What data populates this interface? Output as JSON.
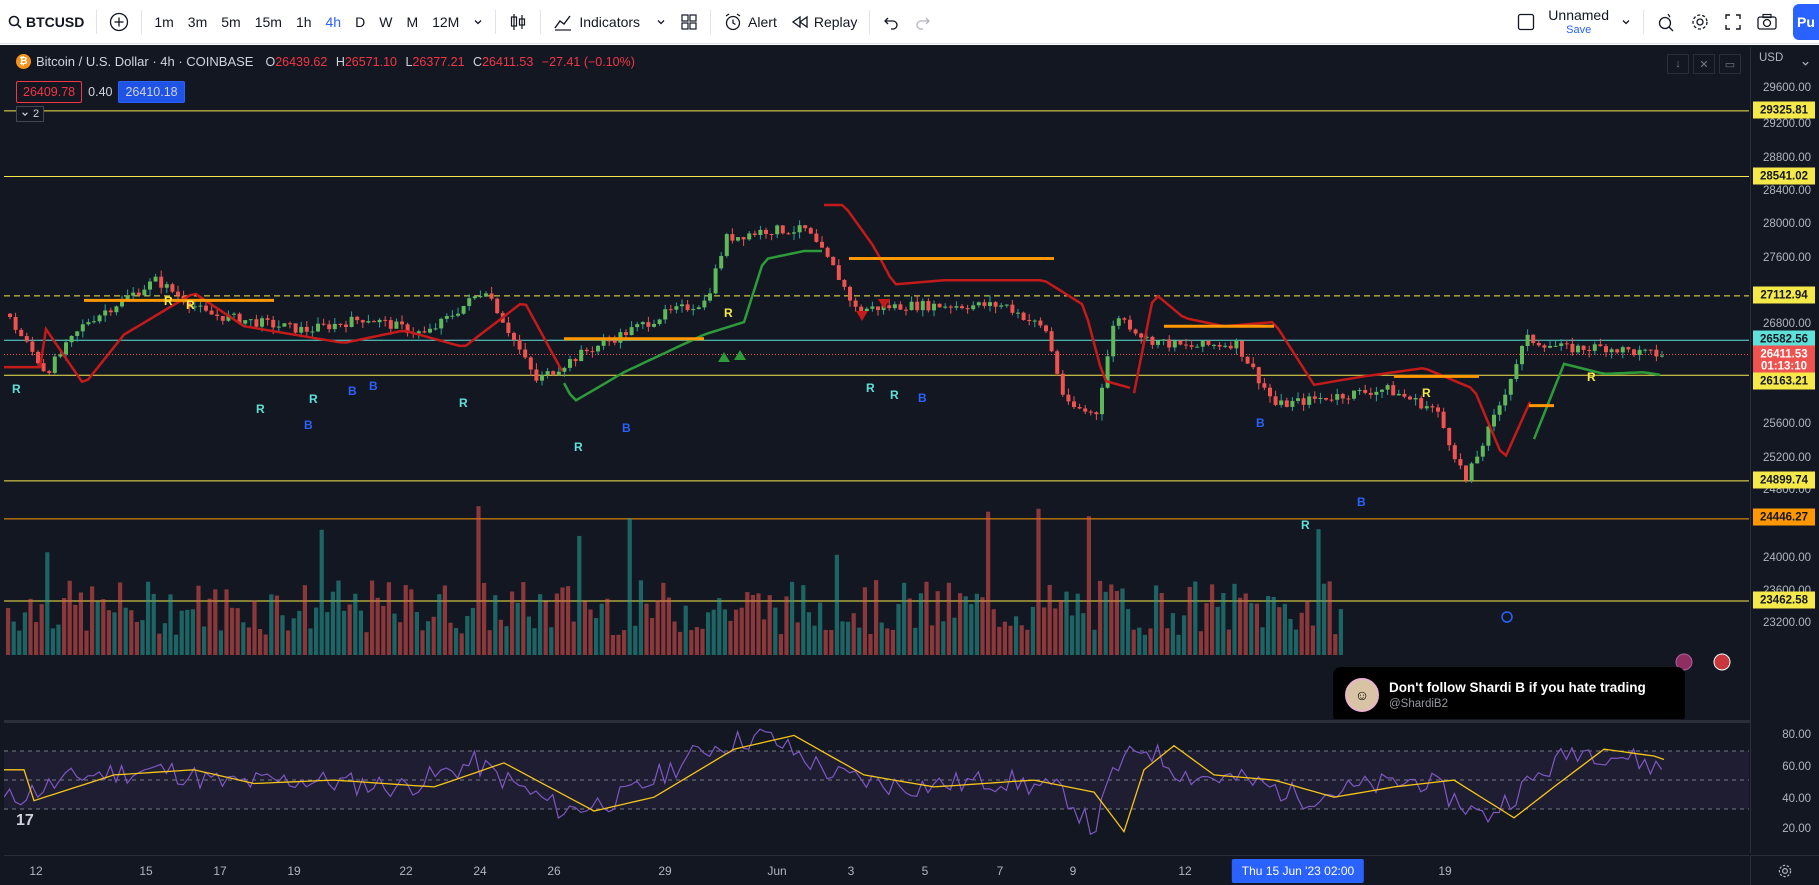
{
  "toolbar": {
    "symbol": "BTCUSD",
    "intervals": [
      "1m",
      "3m",
      "5m",
      "15m",
      "1h",
      "4h",
      "D",
      "W",
      "M",
      "12M"
    ],
    "active_interval": "4h",
    "indicators_label": "Indicators",
    "alert_label": "Alert",
    "replay_label": "Replay",
    "layout_name": "Unnamed",
    "layout_save": "Save",
    "publish_label": "Pu"
  },
  "legend": {
    "title": "Bitcoin / U.S. Dollar · 4h · COINBASE",
    "o_key": "O",
    "o_val": "26439.62",
    "h_key": "H",
    "h_val": "26571.10",
    "l_key": "L",
    "l_val": "26377.21",
    "c_key": "C",
    "c_val": "26411.53",
    "change": "−27.41 (−0.10%)",
    "bid": "26409.78",
    "spread": "0.40",
    "ask": "26410.18",
    "indicators_collapsed": "2"
  },
  "price_axis": {
    "currency": "USD",
    "ticks": [
      "29600.00",
      "29200.00",
      "28800.00",
      "28400.00",
      "28000.00",
      "27600.00",
      "26800.00",
      "25600.00",
      "25200.00",
      "24800.00",
      "24000.00",
      "23600.00",
      "23200.00"
    ],
    "tags": [
      {
        "text": "29325.81",
        "color": "#f5e94a"
      },
      {
        "text": "28541.02",
        "color": "#f5e94a"
      },
      {
        "text": "27112.94",
        "color": "#f5e94a"
      },
      {
        "text": "26582.56",
        "color": "#5fe0d8"
      },
      {
        "text": "26411.53",
        "color": "#ef5350"
      },
      {
        "text": "01:13:10",
        "color": "#ef5350"
      },
      {
        "text": "26163.21",
        "color": "#f5e94a"
      },
      {
        "text": "24899.74",
        "color": "#f5e94a"
      },
      {
        "text": "24446.27",
        "color": "#ff9800"
      },
      {
        "text": "23462.58",
        "color": "#f5e94a"
      }
    ],
    "rsi_ticks": [
      "80.00",
      "60.00",
      "40.00",
      "20.00"
    ]
  },
  "time_axis": {
    "labels": [
      "12",
      "15",
      "17",
      "19",
      "22",
      "24",
      "26",
      "29",
      "Jun",
      "3",
      "5",
      "7",
      "9",
      "12",
      "19"
    ],
    "hover_label": "Thu 15 Jun '23   02:00"
  },
  "notification": {
    "title": "Don't follow Shardi B if you hate trading",
    "handle": "@ShardiB2"
  },
  "signal_letters": {
    "r": "R",
    "b": "B"
  },
  "colors": {
    "up": "#26a69a",
    "down": "#ef5350",
    "level": "#f5e94a",
    "level_orange": "#ff9800",
    "ma_red": "#c41a1a",
    "ma_green": "#2e9b3a",
    "rsi": "#7e57c2",
    "rsi_ma": "#f5c518"
  }
}
